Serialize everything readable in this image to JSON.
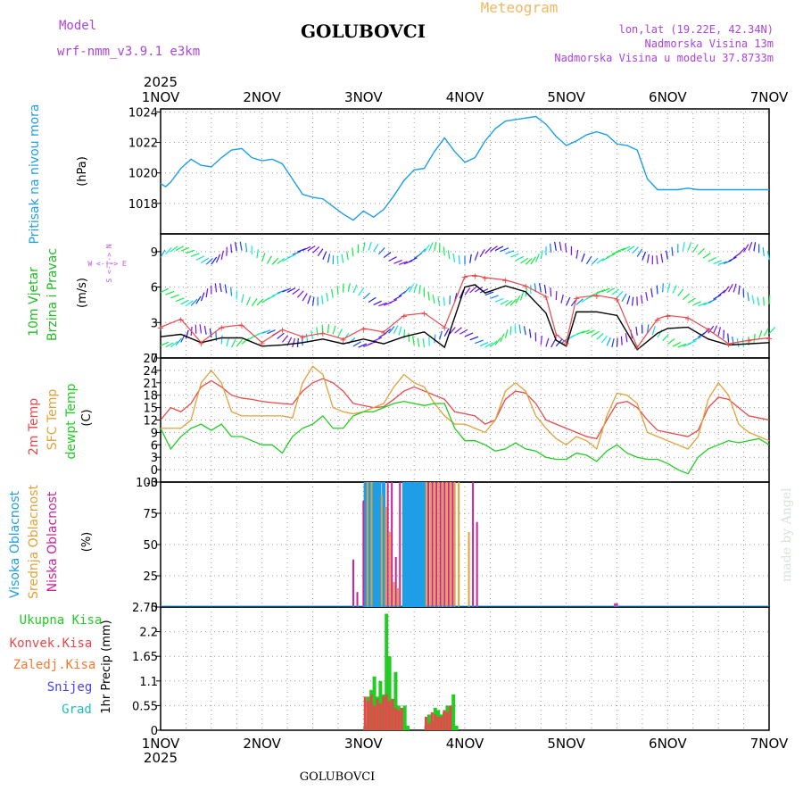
{
  "header": {
    "model_label": "Model",
    "model_name": "wrf-nmm_v3.9.1 e3km",
    "station": "GOLUBOVCI",
    "meteogram": "Meteogram",
    "lonlat": "lon,lat (19.22E, 42.34N)",
    "elev": "Nadmorska Visina 13m",
    "elev_model": "Nadmorska Visina u modelu 37.8733m",
    "year": "2025",
    "footer_station": "GOLUBOVCI",
    "watermark": "made by Angel"
  },
  "colors": {
    "pressure": "#1e9ee6",
    "wind_label": "#22bb22",
    "t2m": "#e8484a",
    "sfc": "#e0a23a",
    "dewpt": "#22cc22",
    "high_cloud": "#1e9ee6",
    "mid_cloud": "#e0a23a",
    "low_cloud": "#cc2299",
    "compass": "#bb55dd",
    "header_purple": "#aa44dd",
    "header_orange": "#f0b860"
  },
  "x_axis": {
    "day_ticks": [
      "1NOV",
      "2NOV",
      "3NOV",
      "4NOV",
      "5NOV",
      "6NOV",
      "7NOV"
    ],
    "year": "2025"
  },
  "panels": {
    "pressure": {
      "labels": [
        "Pritisak na nivou mora"
      ],
      "unit": "(hPa)"
    },
    "wind": {
      "labels": [
        "10m Vjetar",
        "Brzina i Pravac"
      ],
      "unit": "(m/s)",
      "compass": "W <-|-> E",
      "compass_v": "S <-|-> N"
    },
    "temp": {
      "labels": [
        "2m Temp",
        "SFC Temp",
        "dewpt Temp"
      ],
      "unit": "(C)"
    },
    "cloud": {
      "labels": [
        "Visoka Oblacnost",
        "Srednja Oblacnost",
        "Niska Oblacnost"
      ],
      "unit": "(%)"
    },
    "precip": {
      "labels": [
        "Ukupna Kisa",
        "Konvek.Kisa",
        "Zaledj.Kisa",
        "Snijeg",
        "Grad"
      ],
      "label_colors": [
        "#22cc22",
        "#e8484a",
        "#f07830",
        "#4444ee",
        "#22bbbb"
      ],
      "unit": "1hr Precip (mm)"
    }
  },
  "chart_data": [
    {
      "type": "line",
      "title": "Pritisak na nivou mora",
      "ylabel": "(hPa)",
      "ylim": [
        1016,
        1024.2
      ],
      "yticks": [
        1018,
        1020,
        1022,
        1024
      ],
      "xlim": [
        0,
        6
      ],
      "series": [
        {
          "name": "Pressure",
          "color": "#1e9ee6",
          "x": [
            0,
            0.05,
            0.1,
            0.2,
            0.3,
            0.4,
            0.5,
            0.6,
            0.7,
            0.8,
            0.9,
            1.0,
            1.1,
            1.2,
            1.3,
            1.4,
            1.5,
            1.6,
            1.7,
            1.8,
            1.9,
            2.0,
            2.1,
            2.2,
            2.3,
            2.4,
            2.5,
            2.6,
            2.7,
            2.8,
            2.9,
            3.0,
            3.1,
            3.2,
            3.3,
            3.4,
            3.5,
            3.6,
            3.7,
            3.8,
            3.9,
            4.0,
            4.1,
            4.2,
            4.3,
            4.4,
            4.5,
            4.6,
            4.7,
            4.8,
            4.9,
            5.0,
            5.1,
            5.2,
            5.3,
            5.4,
            5.5,
            5.6,
            5.7,
            5.8,
            5.9,
            6.0
          ],
          "y": [
            1019.3,
            1019.1,
            1019.4,
            1020.3,
            1020.9,
            1020.5,
            1020.4,
            1021.0,
            1021.5,
            1021.6,
            1021.0,
            1020.8,
            1020.9,
            1020.6,
            1019.6,
            1018.6,
            1018.4,
            1018.3,
            1017.8,
            1017.3,
            1016.9,
            1017.5,
            1017.1,
            1017.6,
            1018.5,
            1019.5,
            1020.2,
            1020.3,
            1021.4,
            1022.3,
            1021.4,
            1020.7,
            1021.0,
            1022.1,
            1022.9,
            1023.4,
            1023.5,
            1023.6,
            1023.7,
            1023.2,
            1022.4,
            1021.8,
            1022.1,
            1022.5,
            1022.7,
            1022.5,
            1021.9,
            1021.8,
            1021.5,
            1019.6,
            1018.9,
            1018.9,
            1018.9,
            1019.0,
            1018.9,
            1018.9,
            1018.9,
            1018.9,
            1018.9,
            1018.9,
            1018.9,
            1018.9
          ]
        }
      ]
    },
    {
      "type": "line",
      "title": "10m Vjetar Brzina i Pravac",
      "ylabel": "(m/s)",
      "ylim": [
        0,
        10.5
      ],
      "yticks": [
        0,
        3,
        6,
        9
      ],
      "xlim": [
        0,
        6
      ],
      "series": [
        {
          "name": "Wind speed",
          "color": "#000000",
          "x": [
            0,
            0.2,
            0.4,
            0.6,
            0.8,
            1.0,
            1.2,
            1.4,
            1.6,
            1.8,
            2.0,
            2.2,
            2.4,
            2.6,
            2.8,
            3.0,
            3.1,
            3.2,
            3.4,
            3.6,
            3.8,
            3.9,
            4.0,
            4.1,
            4.3,
            4.5,
            4.7,
            4.9,
            5.0,
            5.2,
            5.4,
            5.6,
            5.8,
            6.0
          ],
          "y": [
            1.8,
            2.0,
            1.3,
            1.7,
            1.7,
            1.0,
            1.1,
            1.3,
            1.6,
            1.2,
            1.6,
            1.2,
            1.8,
            2.2,
            0.9,
            6.0,
            6.2,
            5.5,
            6.1,
            5.6,
            3.8,
            1.5,
            1.0,
            3.9,
            3.9,
            3.6,
            0.7,
            2.1,
            2.5,
            2.6,
            1.6,
            1.1,
            1.2,
            1.3
          ]
        },
        {
          "name": "Gust",
          "color": "#e8484a",
          "x": [
            0,
            0.2,
            0.4,
            0.6,
            0.8,
            1.0,
            1.2,
            1.4,
            1.6,
            1.8,
            2.0,
            2.2,
            2.4,
            2.6,
            2.8,
            3.0,
            3.1,
            3.2,
            3.4,
            3.6,
            3.8,
            3.9,
            4.0,
            4.1,
            4.3,
            4.5,
            4.7,
            4.9,
            5.0,
            5.2,
            5.4,
            5.6,
            5.8,
            6.0
          ],
          "y": [
            2.6,
            3.3,
            1.3,
            2.6,
            2.8,
            1.3,
            2.4,
            1.8,
            2.1,
            1.6,
            2.5,
            2.2,
            3.6,
            3.8,
            2.6,
            6.9,
            7.0,
            6.8,
            6.6,
            6.1,
            5.2,
            2.0,
            1.3,
            5.1,
            5.3,
            5.0,
            0.9,
            3.3,
            3.6,
            3.4,
            2.4,
            1.2,
            1.5,
            1.7
          ]
        }
      ]
    },
    {
      "type": "line",
      "title": "Temperature",
      "ylabel": "(C)",
      "ylim": [
        -3,
        27
      ],
      "yticks": [
        -3,
        0,
        3,
        6,
        9,
        12,
        15,
        18,
        21,
        24,
        27
      ],
      "xlim": [
        0,
        6
      ],
      "series": [
        {
          "name": "2m Temp",
          "color": "#e8484a",
          "x": [
            0,
            0.1,
            0.2,
            0.3,
            0.4,
            0.5,
            0.6,
            0.7,
            0.8,
            0.9,
            1.0,
            1.1,
            1.2,
            1.3,
            1.4,
            1.5,
            1.6,
            1.7,
            1.8,
            1.9,
            2.0,
            2.1,
            2.2,
            2.3,
            2.4,
            2.5,
            2.6,
            2.7,
            2.8,
            2.9,
            3.0,
            3.1,
            3.2,
            3.3,
            3.4,
            3.5,
            3.6,
            3.7,
            3.8,
            3.9,
            4.0,
            4.1,
            4.2,
            4.3,
            4.4,
            4.5,
            4.6,
            4.7,
            4.8,
            4.9,
            5.0,
            5.1,
            5.2,
            5.3,
            5.4,
            5.5,
            5.6,
            5.7,
            5.8,
            5.9,
            6.0
          ],
          "y": [
            12,
            15,
            14,
            16,
            20,
            21.5,
            20,
            18,
            17.3,
            17,
            16.5,
            16.2,
            16,
            15.8,
            19,
            21,
            22,
            21,
            19,
            16,
            15.5,
            15,
            15.2,
            17,
            19,
            20,
            19,
            18,
            17,
            14,
            13.5,
            13,
            11,
            12,
            17,
            19,
            18.5,
            16,
            12,
            11,
            10,
            9,
            8,
            7.5,
            12,
            16,
            16.5,
            15,
            12,
            9.5,
            9,
            8.5,
            8,
            9.5,
            15,
            17.5,
            17,
            15,
            13,
            12.5,
            12
          ]
        },
        {
          "name": "SFC Temp",
          "color": "#e0a23a",
          "x": [
            0,
            0.1,
            0.2,
            0.3,
            0.4,
            0.5,
            0.6,
            0.7,
            0.8,
            0.9,
            1.0,
            1.1,
            1.2,
            1.3,
            1.4,
            1.5,
            1.6,
            1.7,
            1.8,
            1.9,
            2.0,
            2.1,
            2.2,
            2.3,
            2.4,
            2.5,
            2.6,
            2.7,
            2.8,
            2.9,
            3.0,
            3.1,
            3.2,
            3.3,
            3.4,
            3.5,
            3.6,
            3.7,
            3.8,
            3.9,
            4.0,
            4.1,
            4.2,
            4.3,
            4.4,
            4.5,
            4.6,
            4.7,
            4.8,
            4.9,
            5.0,
            5.1,
            5.2,
            5.3,
            5.4,
            5.5,
            5.6,
            5.7,
            5.8,
            5.9,
            6.0
          ],
          "y": [
            10,
            10,
            10,
            12,
            21,
            24,
            21,
            14,
            13,
            13,
            13,
            13,
            13,
            12.5,
            21,
            25,
            23,
            15,
            14,
            13.5,
            14,
            15,
            16,
            20,
            23,
            21,
            20,
            16,
            13,
            11,
            11,
            10,
            9,
            12,
            19,
            21,
            19,
            13,
            10,
            7.5,
            6,
            8,
            7,
            5,
            13,
            18.5,
            18,
            16,
            9,
            8,
            7,
            6,
            5,
            8,
            17,
            21,
            18,
            11,
            9,
            8,
            7
          ]
        },
        {
          "name": "dewpt Temp",
          "color": "#22cc22",
          "x": [
            0,
            0.1,
            0.2,
            0.3,
            0.4,
            0.5,
            0.6,
            0.7,
            0.8,
            0.9,
            1.0,
            1.1,
            1.2,
            1.3,
            1.4,
            1.5,
            1.6,
            1.7,
            1.8,
            1.9,
            2.0,
            2.1,
            2.2,
            2.3,
            2.4,
            2.5,
            2.6,
            2.7,
            2.8,
            2.9,
            3.0,
            3.1,
            3.2,
            3.3,
            3.4,
            3.5,
            3.6,
            3.7,
            3.8,
            3.9,
            4.0,
            4.1,
            4.2,
            4.3,
            4.4,
            4.5,
            4.6,
            4.7,
            4.8,
            4.9,
            5.0,
            5.1,
            5.2,
            5.3,
            5.4,
            5.5,
            5.6,
            5.7,
            5.8,
            5.9,
            6.0
          ],
          "y": [
            10,
            5,
            8,
            10,
            11,
            9.5,
            11,
            8,
            8,
            7,
            6,
            6,
            4,
            8,
            10,
            11,
            13,
            10,
            10,
            13,
            14,
            14,
            15,
            16,
            16.5,
            16,
            15.5,
            16,
            16,
            10,
            7,
            7,
            6,
            4.5,
            5,
            6.5,
            5,
            4.5,
            3,
            2.5,
            2.5,
            4,
            3.5,
            2,
            4.5,
            6,
            4,
            3,
            2.5,
            2.5,
            1.5,
            0,
            -1,
            3,
            5,
            6,
            7,
            6.5,
            7,
            7.5,
            6
          ]
        }
      ]
    },
    {
      "type": "bar",
      "title": "Oblacnost",
      "ylabel": "(%)",
      "ylim": [
        0,
        100
      ],
      "yticks": [
        0,
        25,
        50,
        75,
        100
      ],
      "xlim": [
        0,
        6
      ],
      "series": [
        {
          "name": "Visoka Oblacnost",
          "color": "#1e9ee6",
          "x": [
            2.02,
            2.06,
            2.1,
            2.12,
            2.14,
            2.16,
            2.2,
            2.4,
            2.42,
            2.44,
            2.46,
            2.48,
            2.5,
            2.52,
            2.54,
            2.56,
            2.58,
            2.6
          ],
          "y": [
            100,
            100,
            100,
            100,
            100,
            100,
            100,
            100,
            100,
            100,
            100,
            100,
            100,
            100,
            100,
            100,
            100,
            100
          ]
        },
        {
          "name": "Srednja Oblacnost",
          "color": "#e0a23a",
          "x": [
            2.04,
            2.08,
            2.18,
            2.22,
            2.26,
            2.3,
            2.34,
            2.62,
            2.66,
            2.7,
            2.74,
            2.78,
            2.82,
            2.86,
            2.9,
            2.94,
            3.04
          ],
          "y": [
            100,
            100,
            90,
            80,
            60,
            20,
            15,
            100,
            100,
            100,
            100,
            100,
            100,
            100,
            100,
            100,
            60
          ]
        },
        {
          "name": "Niska Oblacnost",
          "color": "#cc2299",
          "x": [
            1.9,
            1.94,
            2.0,
            2.24,
            2.28,
            2.32,
            2.36,
            2.64,
            2.68,
            2.72,
            2.76,
            2.8,
            2.84,
            2.88,
            3.08,
            3.12,
            4.48,
            4.5
          ],
          "y": [
            38,
            12,
            85,
            100,
            100,
            40,
            100,
            100,
            100,
            100,
            100,
            100,
            100,
            100,
            100,
            68,
            3,
            3
          ]
        }
      ]
    },
    {
      "type": "bar",
      "title": "1hr Precip",
      "ylabel": "1hr Precip (mm)",
      "ylim": [
        0,
        2.75
      ],
      "yticks": [
        0,
        0.55,
        1.1,
        1.65,
        2.2,
        2.75
      ],
      "xlim": [
        0,
        6
      ],
      "series": [
        {
          "name": "Ukupna Kisa",
          "color": "#22cc22",
          "x": [
            2.0,
            2.03,
            2.06,
            2.09,
            2.12,
            2.15,
            2.18,
            2.21,
            2.24,
            2.27,
            2.3,
            2.33,
            2.36,
            2.39,
            2.42,
            2.6,
            2.63,
            2.66,
            2.69,
            2.72,
            2.75,
            2.78,
            2.81,
            2.84,
            2.87,
            2.9
          ],
          "y": [
            0.1,
            0.75,
            0.9,
            1.2,
            0.75,
            1.1,
            0.8,
            2.6,
            1.65,
            0.7,
            1.3,
            0.55,
            0.5,
            0.55,
            0.1,
            0.1,
            0.35,
            0.2,
            0.5,
            0.45,
            0.35,
            0.4,
            0.55,
            0.5,
            0.8,
            0.1
          ]
        },
        {
          "name": "Konvek.Kisa",
          "color": "#e8484a",
          "x": [
            2.03,
            2.06,
            2.09,
            2.12,
            2.15,
            2.18,
            2.21,
            2.24,
            2.27,
            2.3,
            2.33,
            2.36,
            2.39,
            2.63,
            2.66,
            2.69,
            2.72,
            2.75,
            2.78,
            2.81,
            2.84,
            2.87
          ],
          "y": [
            0.75,
            0.65,
            0.8,
            0.55,
            0.7,
            0.6,
            0.75,
            0.8,
            0.65,
            0.7,
            0.5,
            0.45,
            0.5,
            0.3,
            0.15,
            0.4,
            0.35,
            0.3,
            0.3,
            0.45,
            0.4,
            0.55
          ]
        }
      ]
    }
  ]
}
